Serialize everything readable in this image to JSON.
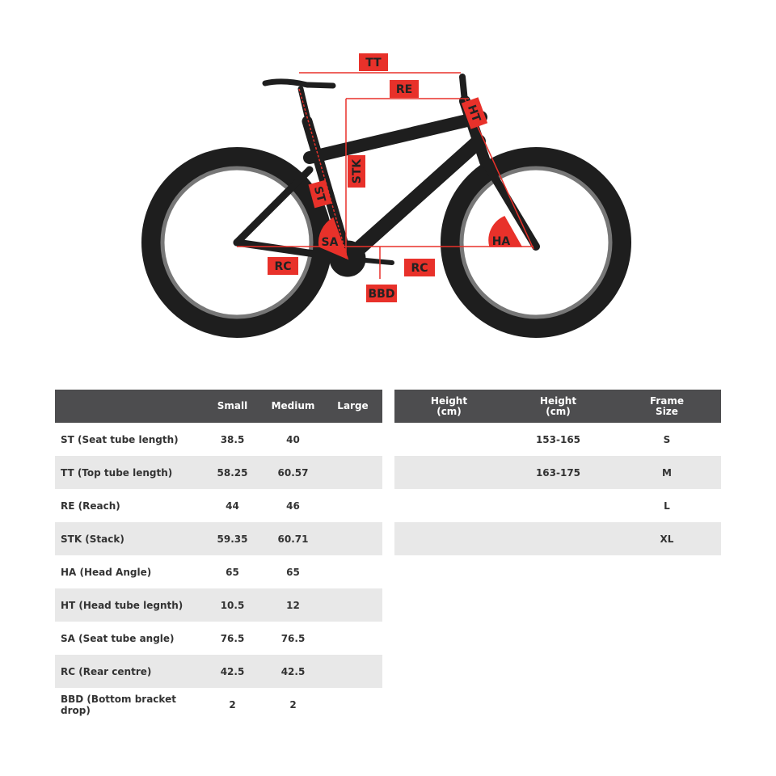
{
  "colors": {
    "accent": "#e8312a",
    "frame": "#1e1e1e",
    "header": "#4d4d4f",
    "row_alt": "#e8e8e8"
  },
  "diagram": {
    "labels": [
      "TT",
      "RE",
      "HT",
      "STK",
      "ST",
      "SA",
      "HA",
      "RC",
      "RC",
      "BBD"
    ]
  },
  "geometry_table": {
    "headers": [
      "",
      "Small",
      "Medium",
      "Large"
    ],
    "rows": [
      [
        "ST (Seat tube length)",
        "38.5",
        "40",
        ""
      ],
      [
        "TT (Top tube length)",
        "58.25",
        "60.57",
        ""
      ],
      [
        "RE (Reach)",
        "44",
        "46",
        ""
      ],
      [
        "STK (Stack)",
        "59.35",
        "60.71",
        ""
      ],
      [
        "HA (Head Angle)",
        "65",
        "65",
        ""
      ],
      [
        "HT (Head tube legnth)",
        "10.5",
        "12",
        ""
      ],
      [
        "SA (Seat tube angle)",
        "76.5",
        "76.5",
        ""
      ],
      [
        "RC (Rear centre)",
        "42.5",
        "42.5",
        ""
      ],
      [
        "BBD (Bottom bracket drop)",
        "2",
        "2",
        ""
      ]
    ]
  },
  "size_table": {
    "headers": [
      "Height\n(cm)",
      "Height\n(cm)",
      "Frame\nSize"
    ],
    "rows": [
      [
        "",
        "153-165",
        "S"
      ],
      [
        "",
        "163-175",
        "M"
      ],
      [
        "",
        "",
        "L"
      ],
      [
        "",
        "",
        "XL"
      ]
    ]
  }
}
